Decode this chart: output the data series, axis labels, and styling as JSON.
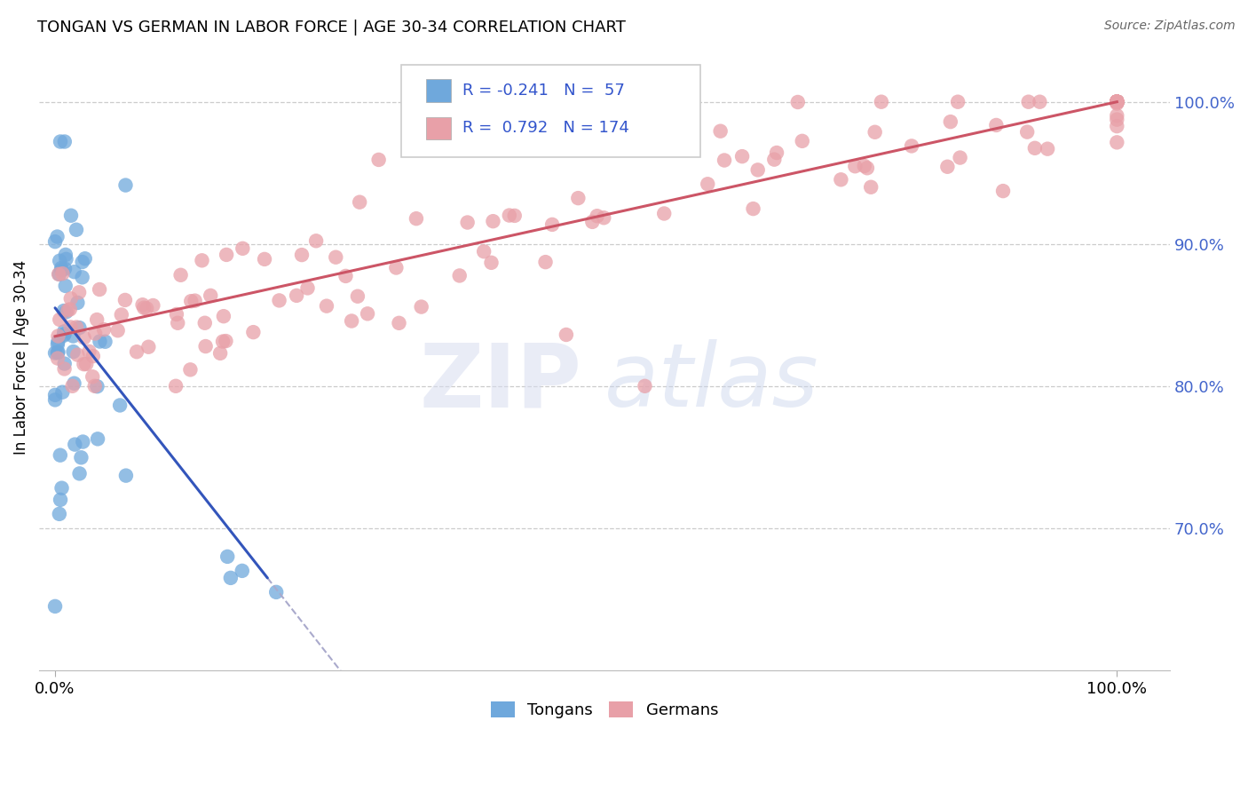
{
  "title": "TONGAN VS GERMAN IN LABOR FORCE | AGE 30-34 CORRELATION CHART",
  "source": "Source: ZipAtlas.com",
  "ylabel": "In Labor Force | Age 30-34",
  "blue_R": -0.241,
  "blue_N": 57,
  "pink_R": 0.792,
  "pink_N": 174,
  "blue_color": "#6fa8dc",
  "pink_color": "#e8a0a8",
  "blue_line_color": "#3355bb",
  "pink_line_color": "#cc5566",
  "legend_blue_label": "Tongans",
  "legend_pink_label": "Germans",
  "legend_text_color": "#3355cc",
  "right_tick_color": "#4466cc",
  "ylim_low": 0.6,
  "ylim_high": 1.04,
  "xlim_low": -0.015,
  "xlim_high": 1.05,
  "blue_intercept": 0.855,
  "blue_slope": -0.95,
  "pink_intercept": 0.835,
  "pink_slope": 0.165
}
